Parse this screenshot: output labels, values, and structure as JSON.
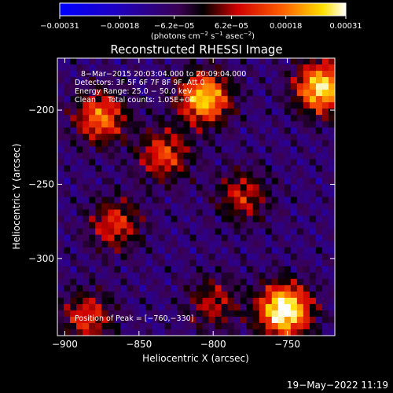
{
  "chart_data": {
    "type": "heatmap",
    "title": "Reconstructed RHESSI Image",
    "xlabel": "Heliocentric X (arcsec)",
    "ylabel": "Heliocentric Y (arcsec)",
    "xlim": [
      -905,
      -718
    ],
    "ylim": [
      -352,
      -165
    ],
    "x_ticks": [
      -900,
      -850,
      -800,
      -750
    ],
    "x_tick_labels": [
      "−900",
      "−850",
      "−800",
      "−750"
    ],
    "y_ticks": [
      -200,
      -250,
      -300
    ],
    "y_tick_labels": [
      "−200",
      "−250",
      "−300"
    ],
    "colorbar": {
      "min": -0.00031,
      "max": 0.00031,
      "ticks": [
        -0.00031,
        -0.00018,
        -6.2e-05,
        6.2e-05,
        0.00018,
        0.00031
      ],
      "tick_labels": [
        "−0.00031",
        "−0.00018",
        "−6.2e−05",
        "6.2e−05",
        "0.00018",
        "0.00031"
      ],
      "unit_parts": [
        "(photons cm",
        "−2",
        " s",
        "−1",
        " asec",
        "−2",
        ")"
      ]
    },
    "annotations": [
      "8−Mar−2015 20:03:04.000 to 20:09:04.000",
      "Detectors: 3F 5F 6F 7F 8F 9F, Att 0",
      "Energy Range: 25.0 − 50.0 keV",
      "Clean     Total counts: 1.05E+04",
      "Position of Peak = [−760,−330]"
    ],
    "sources": [
      {
        "x": -752,
        "y": -335,
        "peak": 1.0
      },
      {
        "x": -727,
        "y": -185,
        "peak": 0.85
      },
      {
        "x": -806,
        "y": -192,
        "peak": 0.8
      },
      {
        "x": -876,
        "y": -205,
        "peak": 0.6
      },
      {
        "x": -833,
        "y": -230,
        "peak": 0.5
      },
      {
        "x": -866,
        "y": -277,
        "peak": 0.45
      },
      {
        "x": -780,
        "y": -258,
        "peak": 0.4
      },
      {
        "x": -885,
        "y": -340,
        "peak": 0.45
      },
      {
        "x": -800,
        "y": -330,
        "peak": 0.35
      }
    ]
  },
  "footer": {
    "date": "19−May−2022 11:19"
  }
}
